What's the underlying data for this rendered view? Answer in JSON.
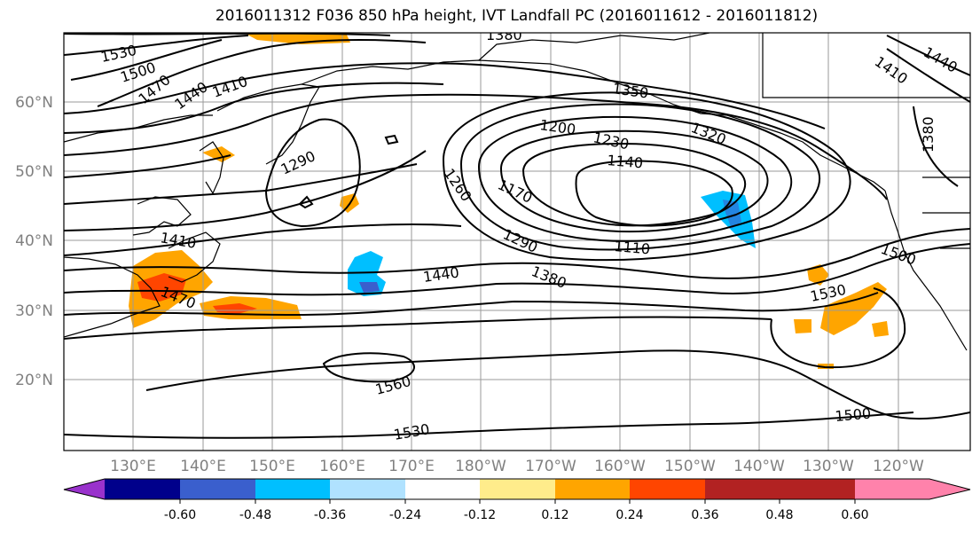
{
  "title": "2016011312 F036 850 hPa height, IVT Landfall PC (2016011612 - 2016011812)",
  "map": {
    "lat_labels": [
      "60°N",
      "50°N",
      "40°N",
      "30°N",
      "20°N"
    ],
    "lon_labels": [
      "130°E",
      "140°E",
      "150°E",
      "160°E",
      "170°E",
      "180°W",
      "170°W",
      "160°W",
      "150°W",
      "140°W",
      "130°W",
      "120°W"
    ],
    "contour_labels": [
      "1530",
      "1500",
      "1470",
      "1440",
      "1410",
      "1380",
      "1350",
      "1320",
      "1290",
      "1260",
      "1230",
      "1200",
      "1170",
      "1140",
      "1110",
      "1410",
      "1470",
      "1440",
      "1380",
      "1290",
      "1560",
      "1530",
      "1530",
      "1500",
      "1500",
      "1440",
      "1410",
      "1380"
    ]
  },
  "colorbar": {
    "colors": [
      "#9932CC",
      "#00008B",
      "#3A5FCD",
      "#00BFFF",
      "#B0E2FF",
      "#FFFFFF",
      "#FFEC8B",
      "#FFA500",
      "#FF4500",
      "#B22222",
      "#FF82AB"
    ],
    "tick_labels": [
      "-0.60",
      "-0.48",
      "-0.36",
      "-0.24",
      "-0.12",
      "0.12",
      "0.24",
      "0.36",
      "0.48",
      "0.60"
    ]
  }
}
